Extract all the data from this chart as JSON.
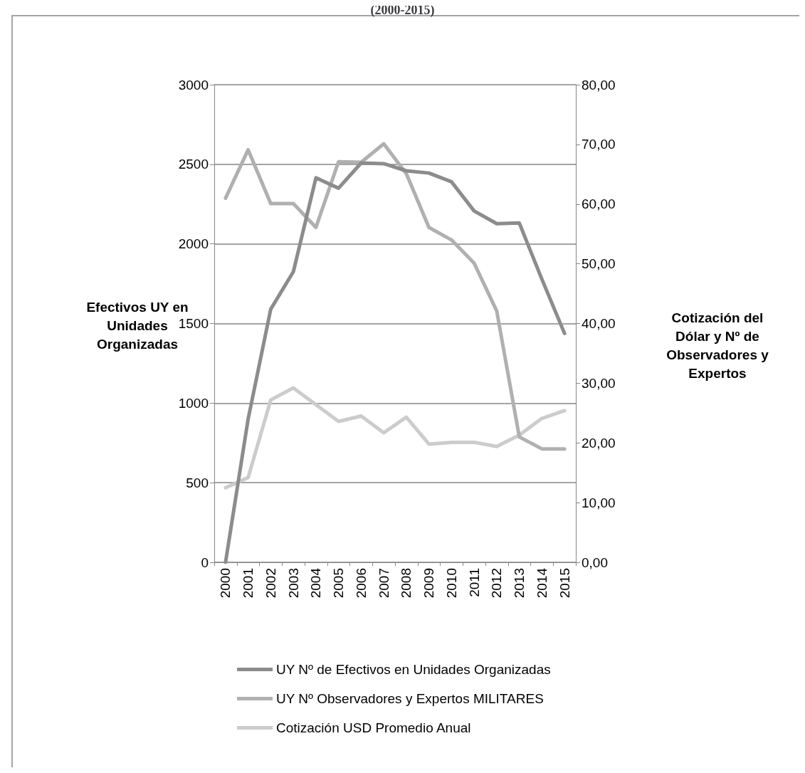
{
  "chart_data": {
    "type": "line",
    "title": "(2000-2015)",
    "categories": [
      "2000",
      "2001",
      "2002",
      "2003",
      "2004",
      "2005",
      "2006",
      "2007",
      "2008",
      "2009",
      "2010",
      "2011",
      "2012",
      "2013",
      "2014",
      "2015"
    ],
    "series": [
      {
        "name": "UY Nº de Efectivos en Unidades Organizadas",
        "color": "#8c8c8c",
        "values": [
          0,
          900,
          1590,
          1825,
          2415,
          2350,
          2508,
          2504,
          2459,
          2445,
          2390,
          2207,
          2127,
          2131,
          1778,
          1438
        ]
      },
      {
        "name": "UY Nº Observadores y Expertos MILITARES",
        "color": "#b0b0b0",
        "axis": "y2",
        "values": [
          61.0,
          69.1,
          60.1,
          60.1,
          56.1,
          67.1,
          67.0,
          70.1,
          65.1,
          56.1,
          54.0,
          50.1,
          42.1,
          21.0,
          19.0,
          19.0
        ]
      },
      {
        "name": "Cotización USD Promedio Anual",
        "color": "#cccccc",
        "axis": "y2",
        "values": [
          12.5,
          14.2,
          27.2,
          29.2,
          26.4,
          23.6,
          24.5,
          21.7,
          24.3,
          19.8,
          20.1,
          20.1,
          19.4,
          21.3,
          24.1,
          25.4
        ]
      }
    ],
    "ylabel": "Efectivos UY en Unidades Organizadas",
    "y2label": "Cotización del Dólar y Nº de Observadores y Expertos",
    "ylim": [
      0,
      3000
    ],
    "yticks": [
      0,
      500,
      1000,
      1500,
      2000,
      2500,
      3000
    ],
    "y2lim": [
      0,
      80
    ],
    "y2ticks": [
      {
        "value": 0,
        "label": "0,00"
      },
      {
        "value": 10,
        "label": "10,00"
      },
      {
        "value": 20,
        "label": "20,00"
      },
      {
        "value": 30,
        "label": "30,00"
      },
      {
        "value": 40,
        "label": "40,00"
      },
      {
        "value": 50,
        "label": "50,00"
      },
      {
        "value": 60,
        "label": "60,00"
      },
      {
        "value": 70,
        "label": "70,00"
      },
      {
        "value": 80,
        "label": "80,00"
      }
    ],
    "grid": "y",
    "legend": "bottom",
    "marker": "none",
    "line_style": "solid"
  }
}
